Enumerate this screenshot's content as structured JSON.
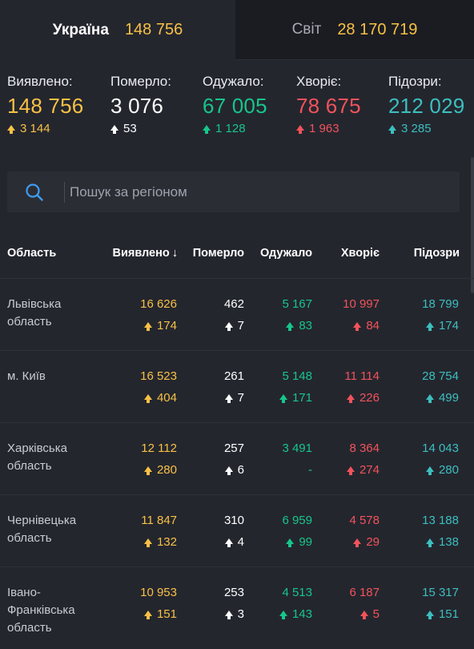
{
  "tabs": {
    "ukraine": {
      "name": "Україна",
      "count": "148 756"
    },
    "world": {
      "name": "Світ",
      "count": "28 170 719"
    }
  },
  "stats": {
    "detected": {
      "label": "Виявлено:",
      "value": "148 756",
      "delta": "3 144"
    },
    "died": {
      "label": "Померло:",
      "value": "3 076",
      "delta": "53"
    },
    "recovered": {
      "label": "Одужало:",
      "value": "67 005",
      "delta": "1 128"
    },
    "sick": {
      "label": "Хворіє:",
      "value": "78 675",
      "delta": "1 963"
    },
    "suspected": {
      "label": "Підозри:",
      "value": "212 029",
      "delta": "3 285"
    }
  },
  "search": {
    "placeholder": "Пошук за регіоном",
    "icon": "search-icon"
  },
  "table": {
    "headers": {
      "area": "Область",
      "detected": "Виявлено",
      "sort_indicator": "↓",
      "died": "Померло",
      "recovered": "Одужало",
      "sick": "Хворіє",
      "suspected": "Підозри"
    },
    "rows": [
      {
        "area": "Львівська область",
        "detected": "16 626",
        "detected_d": "174",
        "died": "462",
        "died_d": "7",
        "recovered": "5 167",
        "recovered_d": "83",
        "sick": "10 997",
        "sick_d": "84",
        "suspected": "18 799",
        "suspected_d": "174"
      },
      {
        "area": "м. Київ",
        "detected": "16 523",
        "detected_d": "404",
        "died": "261",
        "died_d": "7",
        "recovered": "5 148",
        "recovered_d": "171",
        "sick": "11 114",
        "sick_d": "226",
        "suspected": "28 754",
        "suspected_d": "499"
      },
      {
        "area": "Харківська область",
        "detected": "12 112",
        "detected_d": "280",
        "died": "257",
        "died_d": "6",
        "recovered": "3 491",
        "recovered_d": "-",
        "sick": "8 364",
        "sick_d": "274",
        "suspected": "14 043",
        "suspected_d": "280"
      },
      {
        "area": "Чернівецька область",
        "detected": "11 847",
        "detected_d": "132",
        "died": "310",
        "died_d": "4",
        "recovered": "6 959",
        "recovered_d": "99",
        "sick": "4 578",
        "sick_d": "29",
        "suspected": "13 188",
        "suspected_d": "138"
      },
      {
        "area": "Івано-Франківська область",
        "detected": "10 953",
        "detected_d": "151",
        "died": "253",
        "died_d": "3",
        "recovered": "4 513",
        "recovered_d": "143",
        "sick": "6 187",
        "sick_d": "5",
        "suspected": "15 317",
        "suspected_d": "151"
      }
    ]
  },
  "colors": {
    "background": "#24262e",
    "detected": "#f8c145",
    "died": "#ffffff",
    "recovered": "#16c68a",
    "sick": "#f2535b",
    "suspected": "#3cbfbf"
  }
}
